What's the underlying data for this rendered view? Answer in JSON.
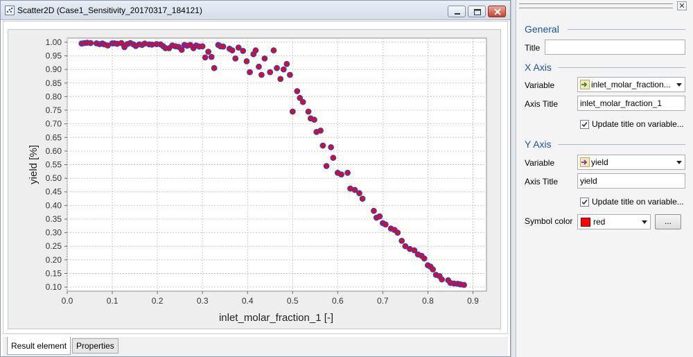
{
  "window": {
    "title": "Scatter2D  (Case1_Sensitivity_20170317_184121)",
    "tabs": [
      {
        "label": "Result element",
        "active": true
      },
      {
        "label": "Properties",
        "active": false
      }
    ]
  },
  "chart_data": {
    "type": "scatter",
    "xlabel": "inlet_molar_fraction_1 [-]",
    "ylabel": "yield [%]",
    "xlim": [
      0.0,
      0.93
    ],
    "ylim": [
      0.085,
      1.015
    ],
    "xticks": [
      "0.0",
      "0.1",
      "0.2",
      "0.3",
      "0.4",
      "0.5",
      "0.6",
      "0.7",
      "0.8",
      "0.9"
    ],
    "yticks": [
      "0.10",
      "0.15",
      "0.20",
      "0.25",
      "0.30",
      "0.35",
      "0.40",
      "0.45",
      "0.50",
      "0.55",
      "0.60",
      "0.65",
      "0.70",
      "0.75",
      "0.80",
      "0.85",
      "0.90",
      "0.95",
      "1.00"
    ],
    "grid": true,
    "marker_fill": "#ff0000",
    "marker_edge": "#3b3bc8",
    "series": [
      {
        "x": [
          0.032,
          0.038,
          0.044,
          0.052,
          0.065,
          0.072,
          0.078,
          0.082,
          0.09,
          0.1,
          0.105,
          0.111,
          0.12,
          0.127,
          0.133,
          0.14,
          0.147,
          0.152,
          0.16,
          0.166,
          0.172,
          0.182,
          0.188,
          0.198,
          0.207,
          0.213,
          0.218,
          0.226,
          0.233,
          0.24,
          0.247,
          0.254,
          0.26,
          0.266,
          0.273,
          0.28,
          0.286,
          0.293,
          0.3,
          0.306,
          0.313,
          0.32,
          0.326,
          0.335,
          0.34,
          0.346,
          0.36,
          0.366,
          0.373,
          0.38,
          0.39,
          0.398,
          0.405,
          0.413,
          0.418,
          0.425,
          0.431,
          0.438,
          0.45,
          0.458,
          0.465,
          0.473,
          0.48,
          0.487,
          0.494,
          0.5,
          0.51,
          0.516,
          0.523,
          0.535,
          0.54,
          0.548,
          0.553,
          0.562,
          0.567,
          0.575,
          0.585,
          0.59,
          0.6,
          0.608,
          0.622,
          0.628,
          0.638,
          0.648,
          0.655,
          0.68,
          0.686,
          0.693,
          0.7,
          0.706,
          0.718,
          0.726,
          0.733,
          0.742,
          0.75,
          0.76,
          0.77,
          0.778,
          0.786,
          0.792,
          0.8,
          0.806,
          0.811,
          0.818,
          0.826,
          0.831,
          0.845,
          0.85,
          0.858,
          0.866,
          0.872,
          0.88
        ],
        "y": [
          0.995,
          0.997,
          0.998,
          0.997,
          0.996,
          0.993,
          0.995,
          0.992,
          0.988,
          0.996,
          0.996,
          0.994,
          0.997,
          0.982,
          0.993,
          0.997,
          0.992,
          0.986,
          0.992,
          0.99,
          0.995,
          0.992,
          0.991,
          0.993,
          0.992,
          0.985,
          0.978,
          0.978,
          0.988,
          0.985,
          0.983,
          0.972,
          0.99,
          0.987,
          0.99,
          0.978,
          0.988,
          0.984,
          0.985,
          0.944,
          0.965,
          0.946,
          0.905,
          0.99,
          0.985,
          0.984,
          0.976,
          0.97,
          0.94,
          0.98,
          0.968,
          0.93,
          0.89,
          0.956,
          0.97,
          0.91,
          0.88,
          0.94,
          0.89,
          0.97,
          0.905,
          0.865,
          0.9,
          0.92,
          0.88,
          0.745,
          0.82,
          0.795,
          0.78,
          0.745,
          0.72,
          0.715,
          0.67,
          0.675,
          0.62,
          0.545,
          0.614,
          0.575,
          0.52,
          0.514,
          0.52,
          0.462,
          0.457,
          0.445,
          0.425,
          0.38,
          0.355,
          0.36,
          0.335,
          0.33,
          0.315,
          0.31,
          0.3,
          0.27,
          0.25,
          0.24,
          0.235,
          0.22,
          0.215,
          0.205,
          0.18,
          0.175,
          0.165,
          0.145,
          0.14,
          0.128,
          0.125,
          0.115,
          0.113,
          0.112,
          0.11,
          0.108
        ]
      }
    ]
  },
  "panel": {
    "close_glyph": "✕",
    "general": {
      "heading": "General",
      "title_label": "Title",
      "title_value": ""
    },
    "x_axis": {
      "heading": "X Axis",
      "variable_label": "Variable",
      "variable_value": "inlet_molar_fraction...",
      "variable_icon": "input-variable-icon",
      "axis_title_label": "Axis Title",
      "axis_title_value": "inlet_molar_fraction_1",
      "update_label": "Update title on variable...",
      "update_checked": true
    },
    "y_axis": {
      "heading": "Y Axis",
      "variable_label": "Variable",
      "variable_value": "yield",
      "variable_icon": "output-variable-icon",
      "axis_title_label": "Axis Title",
      "axis_title_value": "yield",
      "update_label": "Update title on variable...",
      "update_checked": true,
      "symbol_color_label": "Symbol color",
      "symbol_color_value": "red",
      "symbol_color_hex": "#ff0000",
      "more_button_label": "..."
    }
  }
}
